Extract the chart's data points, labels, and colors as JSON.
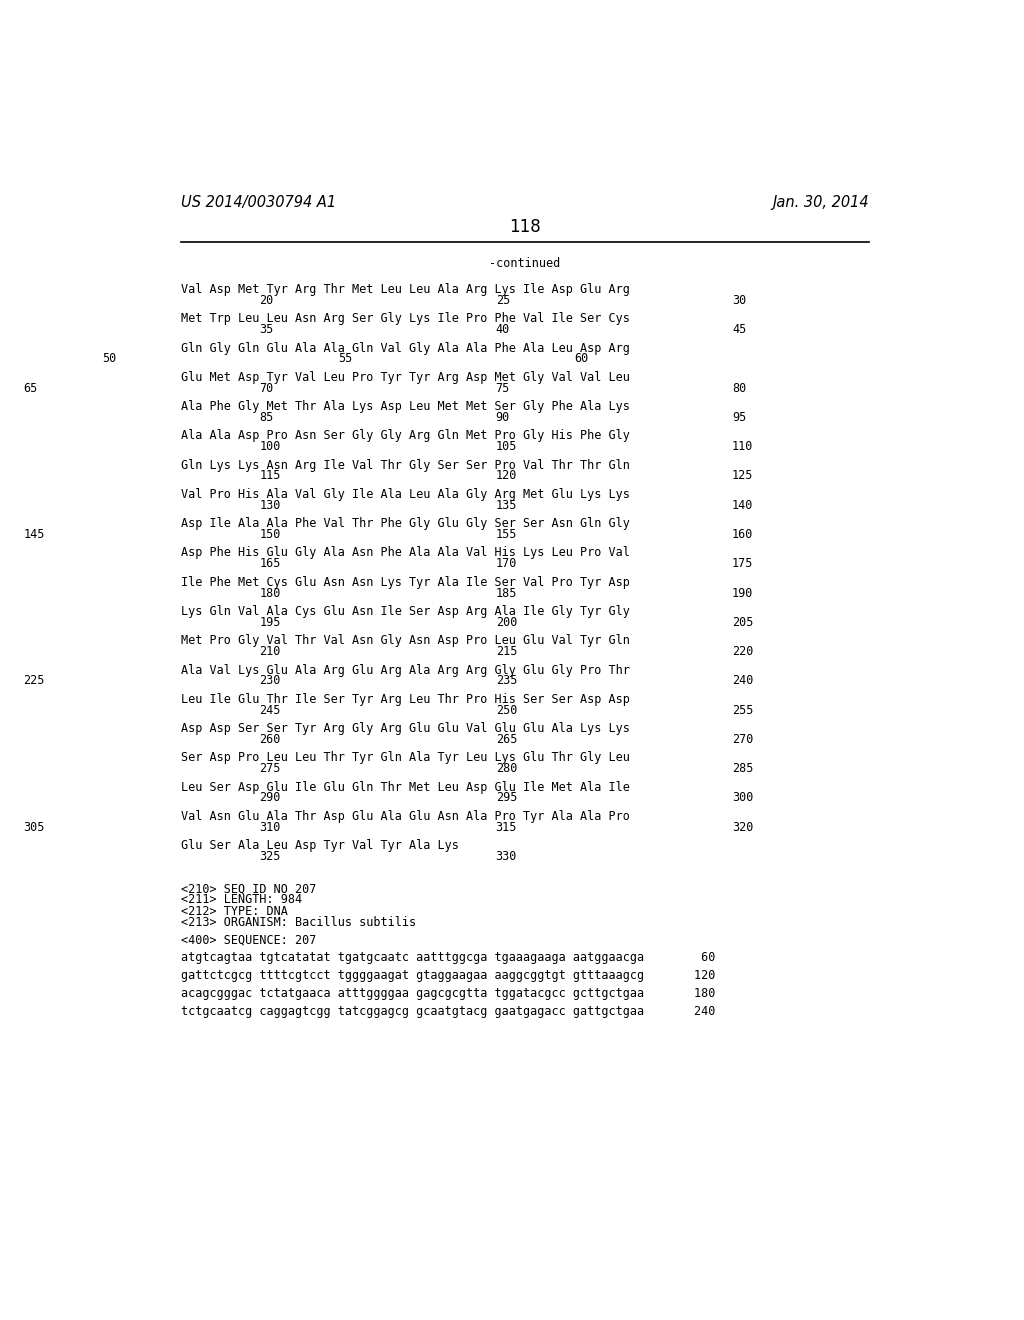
{
  "header_left": "US 2014/0030794 A1",
  "header_right": "Jan. 30, 2014",
  "page_number": "118",
  "continued_label": "-continued",
  "background_color": "#ffffff",
  "text_color": "#000000",
  "seq_lines": [
    {
      "amino": "Val Asp Met Tyr Arg Thr Met Leu Leu Ala Arg Lys Ile Asp Glu Arg",
      "nums": [
        [
          "20",
          1
        ],
        [
          "25",
          4
        ],
        [
          "30",
          7
        ]
      ],
      "indent": 0
    },
    {
      "amino": "Met Trp Leu Leu Asn Arg Ser Gly Lys Ile Pro Phe Val Ile Ser Cys",
      "nums": [
        [
          "35",
          1
        ],
        [
          "40",
          4
        ],
        [
          "45",
          7
        ]
      ],
      "indent": 0
    },
    {
      "amino": "Gln Gly Gln Glu Ala Ala Gln Val Gly Ala Ala Phe Ala Leu Asp Arg",
      "nums": [
        [
          "50",
          -1
        ],
        [
          "55",
          2
        ],
        [
          "60",
          5
        ]
      ],
      "indent": 0
    },
    {
      "amino": "Glu Met Asp Tyr Val Leu Pro Tyr Tyr Arg Asp Met Gly Val Val Leu",
      "nums": [
        [
          "65",
          -2
        ],
        [
          "70",
          1
        ],
        [
          "75",
          4
        ],
        [
          "80",
          7
        ]
      ],
      "indent": 0
    },
    {
      "amino": "Ala Phe Gly Met Thr Ala Lys Asp Leu Met Met Ser Gly Phe Ala Lys",
      "nums": [
        [
          "85",
          1
        ],
        [
          "90",
          4
        ],
        [
          "95",
          7
        ]
      ],
      "indent": 0
    },
    {
      "amino": "Ala Ala Asp Pro Asn Ser Gly Gly Arg Gln Met Pro Gly His Phe Gly",
      "nums": [
        [
          "100",
          1
        ],
        [
          "105",
          4
        ],
        [
          "110",
          7
        ]
      ],
      "indent": 0
    },
    {
      "amino": "Gln Lys Lys Asn Arg Ile Val Thr Gly Ser Ser Pro Val Thr Thr Gln",
      "nums": [
        [
          "115",
          1
        ],
        [
          "120",
          4
        ],
        [
          "125",
          7
        ]
      ],
      "indent": 0
    },
    {
      "amino": "Val Pro His Ala Val Gly Ile Ala Leu Ala Gly Arg Met Glu Lys Lys",
      "nums": [
        [
          "130",
          1
        ],
        [
          "135",
          4
        ],
        [
          "140",
          7
        ]
      ],
      "indent": 0
    },
    {
      "amino": "Asp Ile Ala Ala Phe Val Thr Phe Gly Glu Gly Ser Ser Asn Gln Gly",
      "nums": [
        [
          "145",
          -2
        ],
        [
          "150",
          1
        ],
        [
          "155",
          4
        ],
        [
          "160",
          7
        ]
      ],
      "indent": 0
    },
    {
      "amino": "Asp Phe His Glu Gly Ala Asn Phe Ala Ala Val His Lys Leu Pro Val",
      "nums": [
        [
          "165",
          1
        ],
        [
          "170",
          4
        ],
        [
          "175",
          7
        ]
      ],
      "indent": 0
    },
    {
      "amino": "Ile Phe Met Cys Glu Asn Asn Lys Tyr Ala Ile Ser Val Pro Tyr Asp",
      "nums": [
        [
          "180",
          1
        ],
        [
          "185",
          4
        ],
        [
          "190",
          7
        ]
      ],
      "indent": 0
    },
    {
      "amino": "Lys Gln Val Ala Cys Glu Asn Ile Ser Asp Arg Ala Ile Gly Tyr Gly",
      "nums": [
        [
          "195",
          1
        ],
        [
          "200",
          4
        ],
        [
          "205",
          7
        ]
      ],
      "indent": 0
    },
    {
      "amino": "Met Pro Gly Val Thr Val Asn Gly Asn Asp Pro Leu Glu Val Tyr Gln",
      "nums": [
        [
          "210",
          1
        ],
        [
          "215",
          4
        ],
        [
          "220",
          7
        ]
      ],
      "indent": 0
    },
    {
      "amino": "Ala Val Lys Glu Ala Arg Glu Arg Ala Arg Arg Gly Glu Gly Pro Thr",
      "nums": [
        [
          "225",
          -2
        ],
        [
          "230",
          1
        ],
        [
          "235",
          4
        ],
        [
          "240",
          7
        ]
      ],
      "indent": 0
    },
    {
      "amino": "Leu Ile Glu Thr Ile Ser Tyr Arg Leu Thr Pro His Ser Ser Asp Asp",
      "nums": [
        [
          "245",
          1
        ],
        [
          "250",
          4
        ],
        [
          "255",
          7
        ]
      ],
      "indent": 0
    },
    {
      "amino": "Asp Asp Ser Ser Tyr Arg Gly Arg Glu Glu Val Glu Glu Ala Lys Lys",
      "nums": [
        [
          "260",
          1
        ],
        [
          "265",
          4
        ],
        [
          "270",
          7
        ]
      ],
      "indent": 0
    },
    {
      "amino": "Ser Asp Pro Leu Leu Thr Tyr Gln Ala Tyr Leu Lys Glu Thr Gly Leu",
      "nums": [
        [
          "275",
          1
        ],
        [
          "280",
          4
        ],
        [
          "285",
          7
        ]
      ],
      "indent": 0
    },
    {
      "amino": "Leu Ser Asp Glu Ile Glu Gln Thr Met Leu Asp Glu Ile Met Ala Ile",
      "nums": [
        [
          "290",
          1
        ],
        [
          "295",
          4
        ],
        [
          "300",
          7
        ]
      ],
      "indent": 0
    },
    {
      "amino": "Val Asn Glu Ala Thr Asp Glu Ala Glu Asn Ala Pro Tyr Ala Ala Pro",
      "nums": [
        [
          "305",
          -2
        ],
        [
          "310",
          1
        ],
        [
          "315",
          4
        ],
        [
          "320",
          7
        ]
      ],
      "indent": 0
    },
    {
      "amino": "Glu Ser Ala Leu Asp Tyr Val Tyr Ala Lys",
      "nums": [
        [
          "325",
          1
        ],
        [
          "330",
          4
        ]
      ],
      "indent": 0
    }
  ],
  "metadata_lines": [
    "<210> SEQ ID NO 207",
    "<211> LENGTH: 984",
    "<212> TYPE: DNA",
    "<213> ORGANISM: Bacillus subtilis",
    "",
    "<400> SEQUENCE: 207",
    "",
    "atgtcagtaa tgtcatatat tgatgcaatc aatttggcga tgaaagaaga aatggaacga        60",
    "",
    "gattctcgcg ttttcgtcct tggggaagat gtaggaagaa aaggcggtgt gtttaaagcg       120",
    "",
    "acagcgggac tctatgaaca atttggggaa gagcgcgtta tggatacgcc gcttgctgaa       180",
    "",
    "tctgcaatcg caggagtcgg tatcggagcg gcaatgtacg gaatgagacc gattgctgaa       240"
  ]
}
